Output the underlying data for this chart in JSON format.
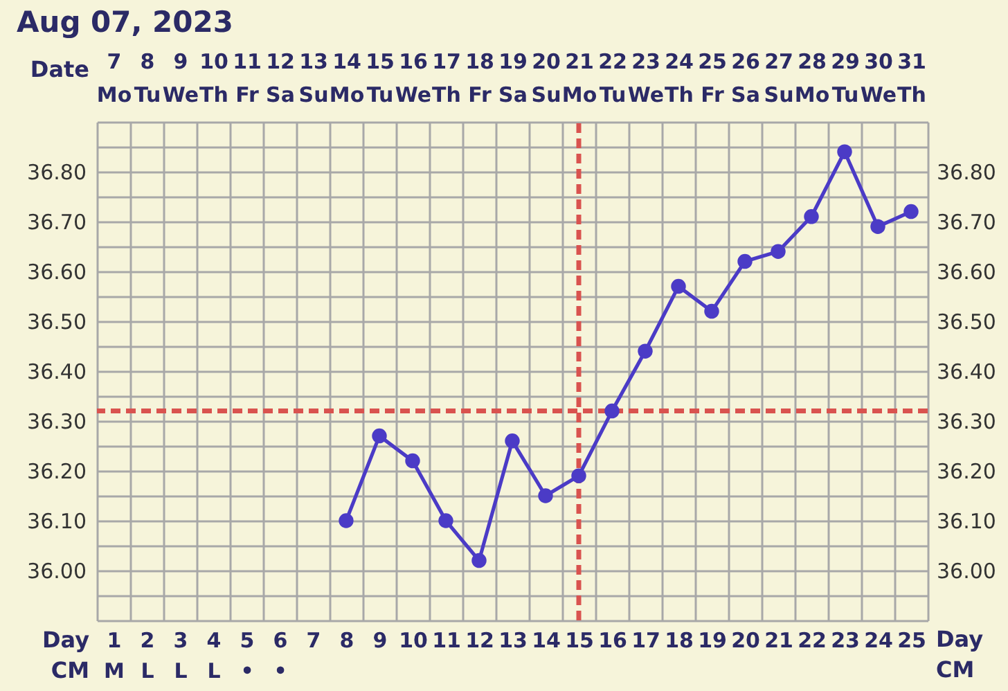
{
  "chart_data": {
    "type": "line",
    "title": "Aug 07, 2023",
    "xlabel": "Day\nCM",
    "x2label": "Date",
    "categories": [
      "1\nM",
      "2\nL",
      "3\nL",
      "4\nL",
      "5\n•",
      "6\n•",
      "7",
      "8",
      "9",
      "10",
      "11",
      "12",
      "13",
      "14",
      "15",
      "16",
      "17",
      "18",
      "19",
      "20",
      "21",
      "22",
      "23",
      "24",
      "25"
    ],
    "series": [
      {
        "color": "#4b3bc6",
        "values": [
          null,
          null,
          null,
          null,
          null,
          null,
          null,
          36.1,
          36.27,
          36.22,
          36.1,
          36.02,
          36.26,
          36.15,
          36.19,
          36.32,
          36.44,
          36.57,
          36.52,
          36.62,
          36.64,
          36.71,
          36.84,
          36.69,
          36.72
        ]
      }
    ],
    "ylim": [
      35.9,
      36.9
    ],
    "yticks": [
      {
        "value": 35.9,
        "label": null
      },
      {
        "value": 35.95,
        "label": null
      },
      {
        "value": 36.0,
        "label": "36.00"
      },
      {
        "value": 36.05,
        "label": null
      },
      {
        "value": 36.1,
        "label": "36.10"
      },
      {
        "value": 36.15,
        "label": null
      },
      {
        "value": 36.2,
        "label": "36.20"
      },
      {
        "value": 36.25,
        "label": null
      },
      {
        "value": 36.3,
        "label": "36.30"
      },
      {
        "value": 36.35,
        "label": null
      },
      {
        "value": 36.4,
        "label": "36.40"
      },
      {
        "value": 36.45,
        "label": null
      },
      {
        "value": 36.5,
        "label": "36.50"
      },
      {
        "value": 36.55,
        "label": null
      },
      {
        "value": 36.6,
        "label": "36.60"
      },
      {
        "value": 36.65,
        "label": null
      },
      {
        "value": 36.7,
        "label": "36.70"
      },
      {
        "value": 36.75,
        "label": null
      },
      {
        "value": 36.8,
        "label": "36.80"
      },
      {
        "value": 36.85,
        "label": null
      },
      {
        "value": 36.9,
        "label": null
      }
    ],
    "y2lim": [
      35.9,
      36.9
    ],
    "y2ticks": [
      {
        "value": 36.0,
        "label": "36.00"
      },
      {
        "value": 36.1,
        "label": "36.10"
      },
      {
        "value": 36.2,
        "label": "36.20"
      },
      {
        "value": 36.3,
        "label": "36.30"
      },
      {
        "value": 36.4,
        "label": "36.40"
      },
      {
        "value": 36.5,
        "label": "36.50"
      },
      {
        "value": 36.6,
        "label": "36.60"
      },
      {
        "value": 36.7,
        "label": "36.70"
      },
      {
        "value": 36.8,
        "label": "36.80"
      }
    ],
    "x2lim": [
      6.5,
      31.5
    ],
    "x2ticks": [
      {
        "value": 7,
        "label": "7\nMo"
      },
      {
        "value": 8,
        "label": "8\nTu"
      },
      {
        "value": 9,
        "label": "9\nWe"
      },
      {
        "value": 10,
        "label": "10\nTh"
      },
      {
        "value": 11,
        "label": "11\nFr"
      },
      {
        "value": 12,
        "label": "12\nSa"
      },
      {
        "value": 13,
        "label": "13\nSu"
      },
      {
        "value": 14,
        "label": "14\nMo"
      },
      {
        "value": 15,
        "label": "15\nTu"
      },
      {
        "value": 16,
        "label": "16\nWe"
      },
      {
        "value": 17,
        "label": "17\nTh"
      },
      {
        "value": 18,
        "label": "18\nFr"
      },
      {
        "value": 19,
        "label": "19\nSa"
      },
      {
        "value": 20,
        "label": "20\nSu"
      },
      {
        "value": 21,
        "label": "21\nMo"
      },
      {
        "value": 22,
        "label": "22\nTu"
      },
      {
        "value": 23,
        "label": "23\nWe"
      },
      {
        "value": 24,
        "label": "24\nTh"
      },
      {
        "value": 25,
        "label": "25\nFr"
      },
      {
        "value": 26,
        "label": "26\nSa"
      },
      {
        "value": 27,
        "label": "27\nSu"
      },
      {
        "value": 28,
        "label": "28\nMo"
      },
      {
        "value": 29,
        "label": "29\nTu"
      },
      {
        "value": 30,
        "label": "30\nWe"
      },
      {
        "value": 31,
        "label": "31\nTh"
      }
    ],
    "ref_lines": [
      {
        "axis": "y",
        "value": 36.32,
        "color": "#d9534f",
        "line_style": "dashed"
      },
      {
        "axis": "x2",
        "value": 21,
        "color": "#d9534f",
        "line_style": "dashed"
      }
    ],
    "grid": true,
    "marker": "circle",
    "line_style": "solid"
  }
}
